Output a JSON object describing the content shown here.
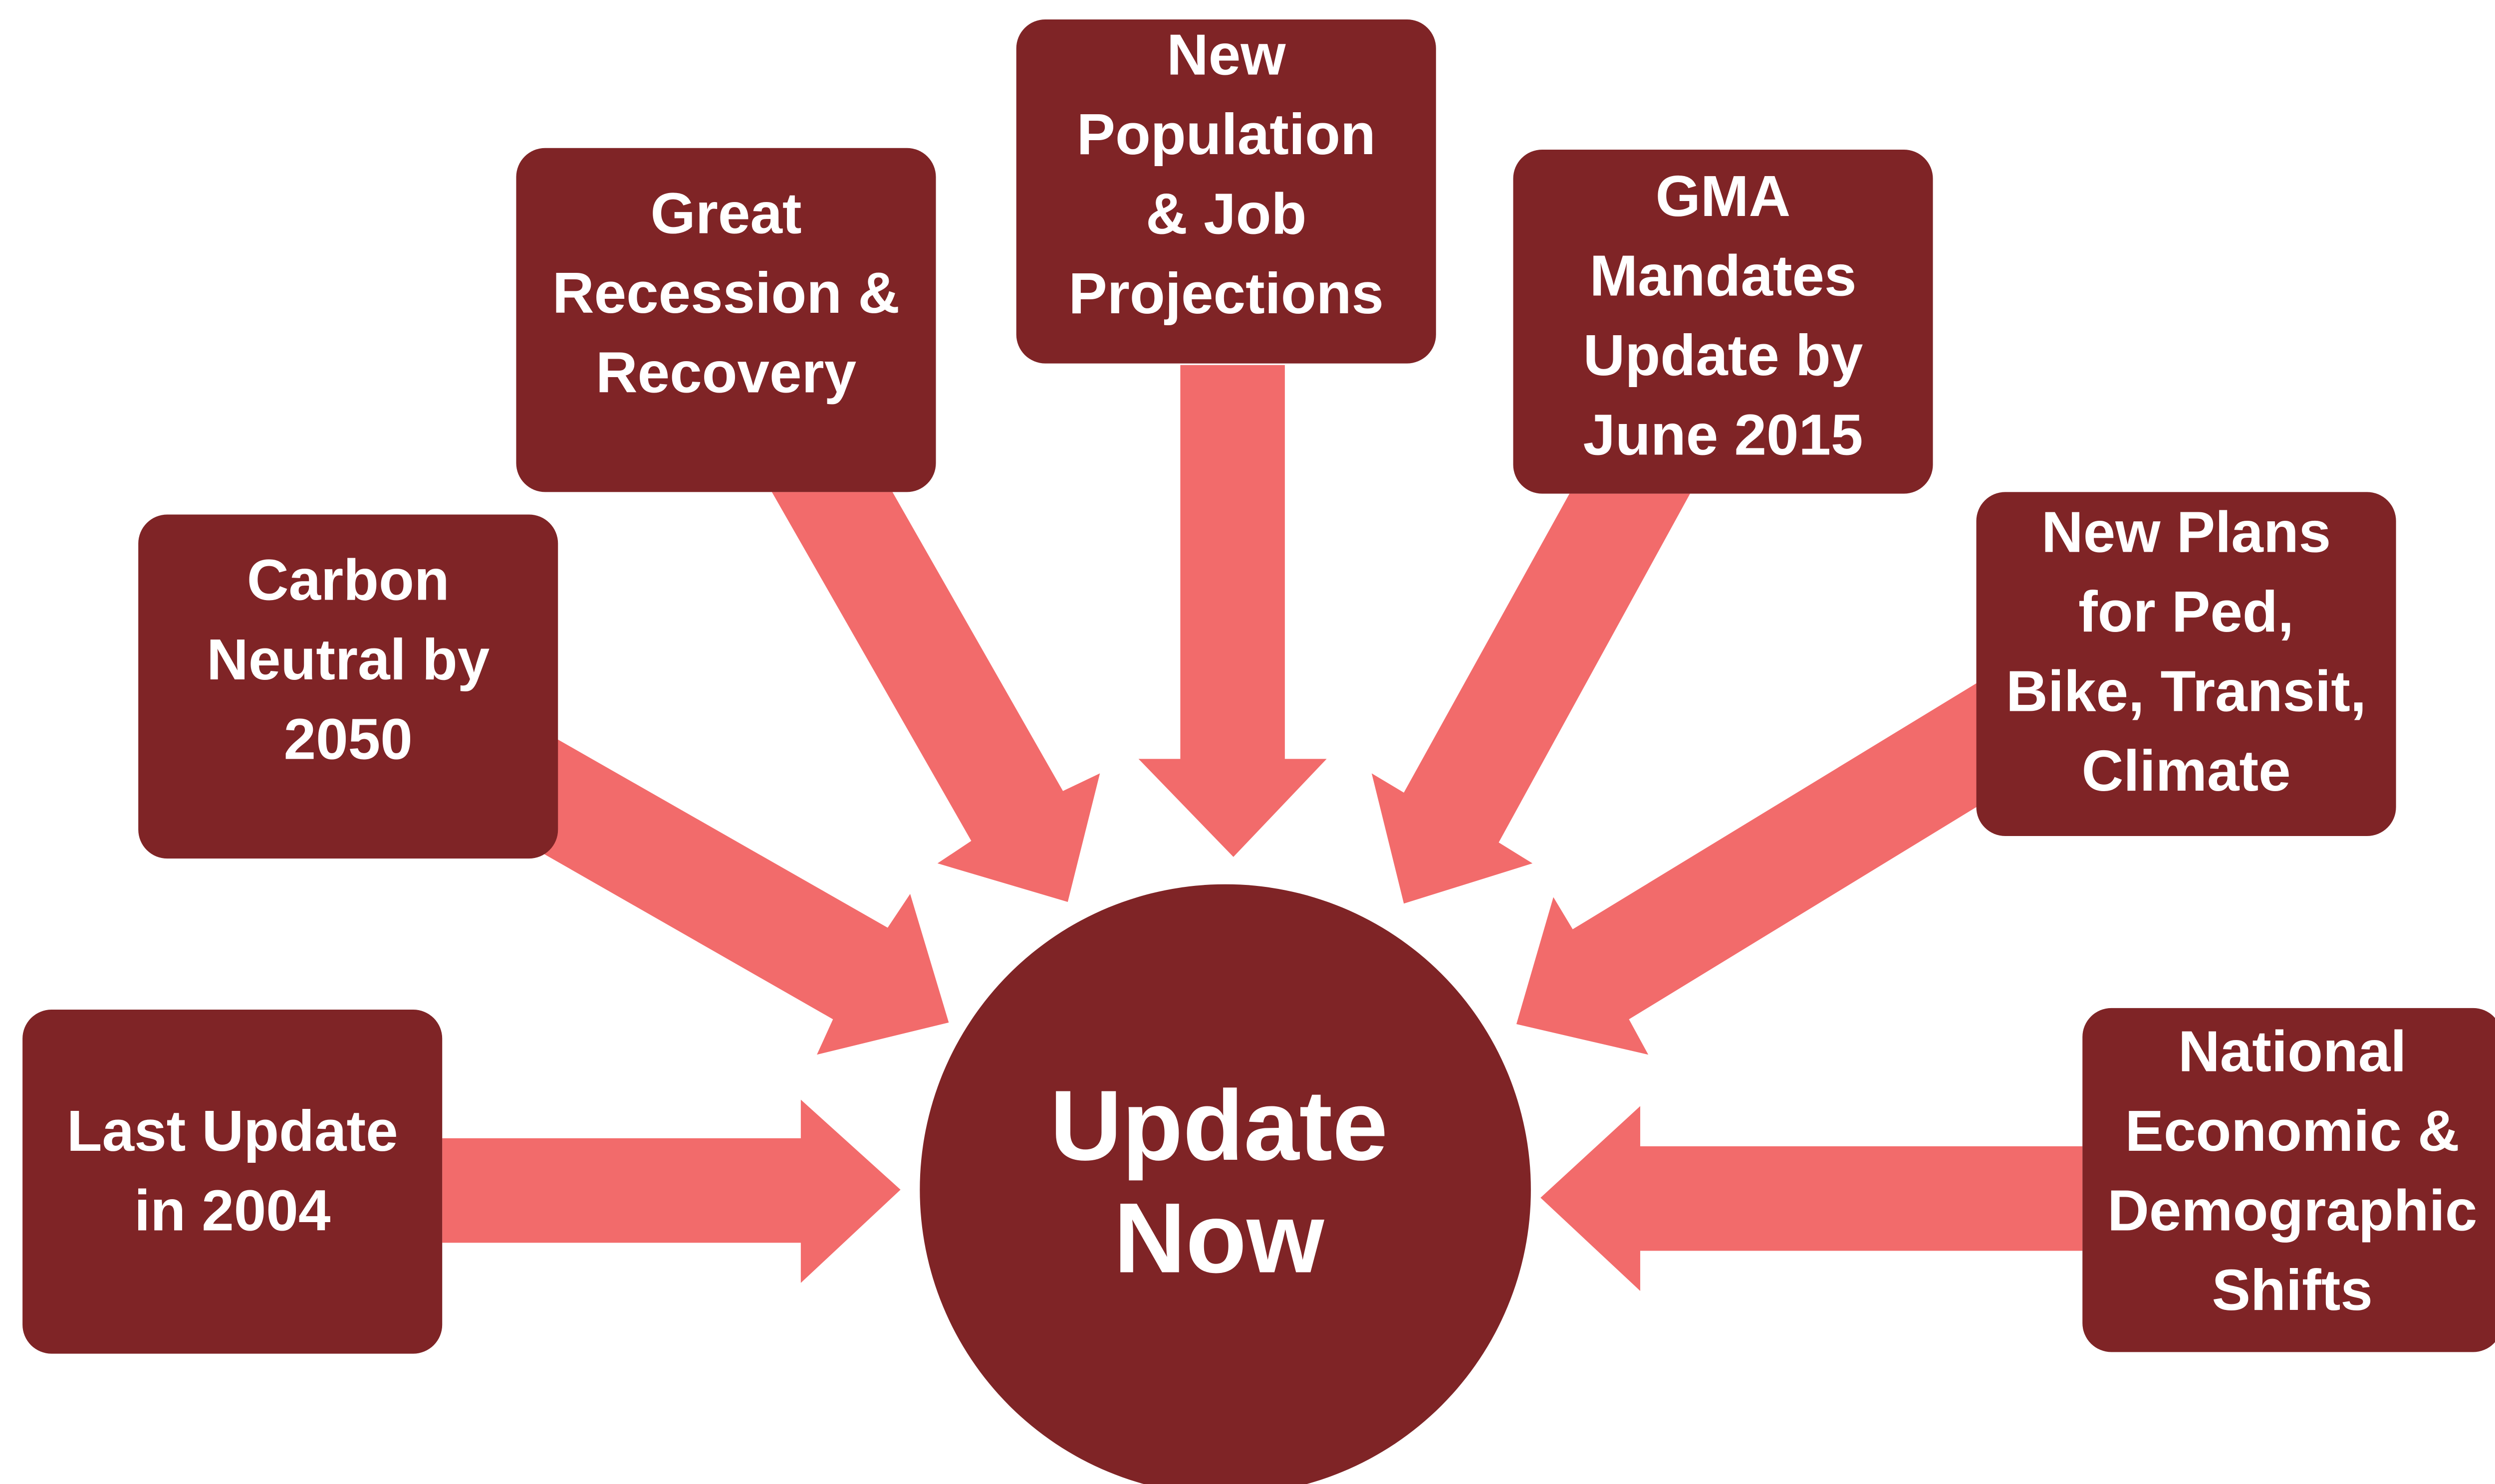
{
  "center": {
    "lines": [
      "Update",
      "Now"
    ]
  },
  "nodes": [
    {
      "lines": [
        "Last Update",
        "in 2004"
      ]
    },
    {
      "lines": [
        "Carbon",
        "Neutral by",
        "2050"
      ]
    },
    {
      "lines": [
        "Great",
        "Recession &",
        "Recovery"
      ]
    },
    {
      "lines": [
        "New",
        "Population",
        "& Job",
        "Projections"
      ]
    },
    {
      "lines": [
        "GMA",
        "Mandates",
        "Update by",
        "June 2015"
      ]
    },
    {
      "lines": [
        "New Plans",
        "for Ped,",
        "Bike, Transit,",
        "Climate"
      ]
    },
    {
      "lines": [
        "National",
        "Economic &",
        "Demographic",
        "Shifts"
      ]
    }
  ]
}
